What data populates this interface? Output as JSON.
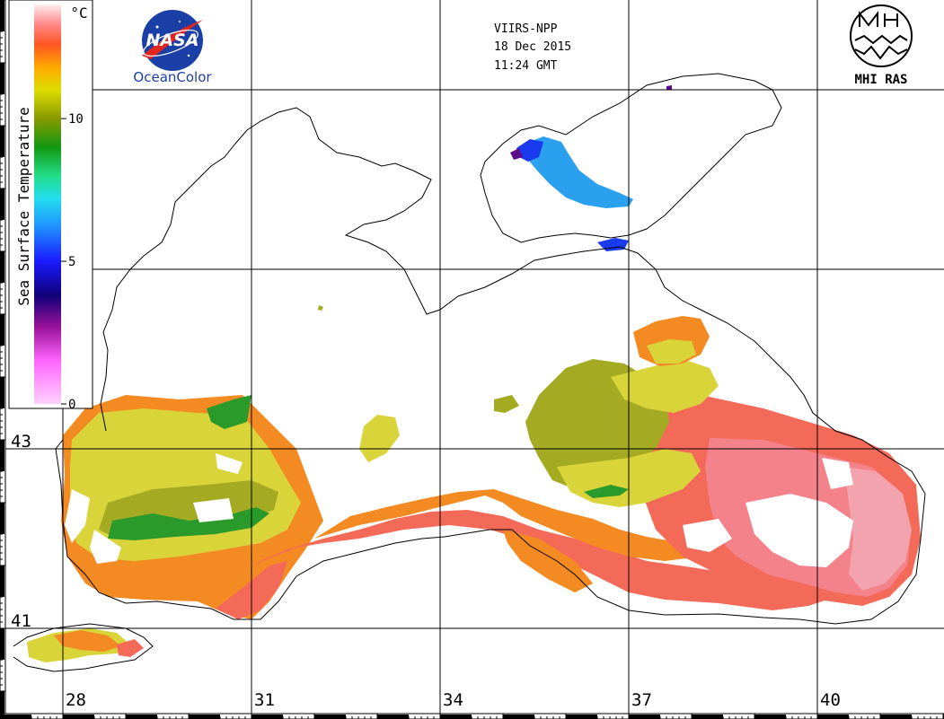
{
  "header": {
    "satellite": "VIIRS-NPP",
    "date": "18 Dec 2015",
    "time": "11:24 GMT"
  },
  "logos": {
    "left_brand": "NASA",
    "left_subtitle": "OceanColor",
    "right_caption": "MHI RAS"
  },
  "colorbar": {
    "title": "Sea Surface Temperature",
    "unit": "°C",
    "ticks": [
      {
        "value": 0,
        "label": "0"
      },
      {
        "value": 5,
        "label": "5"
      },
      {
        "value": 10,
        "label": "10"
      }
    ],
    "range": [
      0,
      14
    ],
    "stops": [
      {
        "value": 0,
        "color": "#ffd2ff"
      },
      {
        "value": 1.5,
        "color": "#ff66ff"
      },
      {
        "value": 2.7,
        "color": "#991199"
      },
      {
        "value": 3.8,
        "color": "#11007a"
      },
      {
        "value": 5,
        "color": "#1a1aff"
      },
      {
        "value": 6.2,
        "color": "#1e90ff"
      },
      {
        "value": 7.2,
        "color": "#22ddee"
      },
      {
        "value": 8,
        "color": "#22dd88"
      },
      {
        "value": 9,
        "color": "#119911"
      },
      {
        "value": 10,
        "color": "#889900"
      },
      {
        "value": 11,
        "color": "#dddd00"
      },
      {
        "value": 11.8,
        "color": "#ffaa00"
      },
      {
        "value": 12.6,
        "color": "#ff5522"
      },
      {
        "value": 13.3,
        "color": "#ff8888"
      },
      {
        "value": 14,
        "color": "#ffeeee"
      }
    ]
  },
  "grid": {
    "longitudes": [
      {
        "value": 28,
        "label": "28"
      },
      {
        "value": 31,
        "label": "31"
      },
      {
        "value": 34,
        "label": "34"
      },
      {
        "value": 37,
        "label": "37"
      },
      {
        "value": 40,
        "label": "40"
      }
    ],
    "latitudes": [
      {
        "value": 43,
        "label": "43"
      },
      {
        "value": 41,
        "label": "41"
      }
    ]
  },
  "sst_colors": {
    "hot": "#f46a58",
    "pinkish": "#f4828a",
    "pale_pink": "#f2a3ad",
    "orange": "#f48a22",
    "yellow": "#d8d43a",
    "olive": "#a4aa22",
    "green": "#2a9a2a",
    "blue": "#2aa0ee",
    "dark_blue": "#1a3aee",
    "purple": "#5a0a8a"
  }
}
